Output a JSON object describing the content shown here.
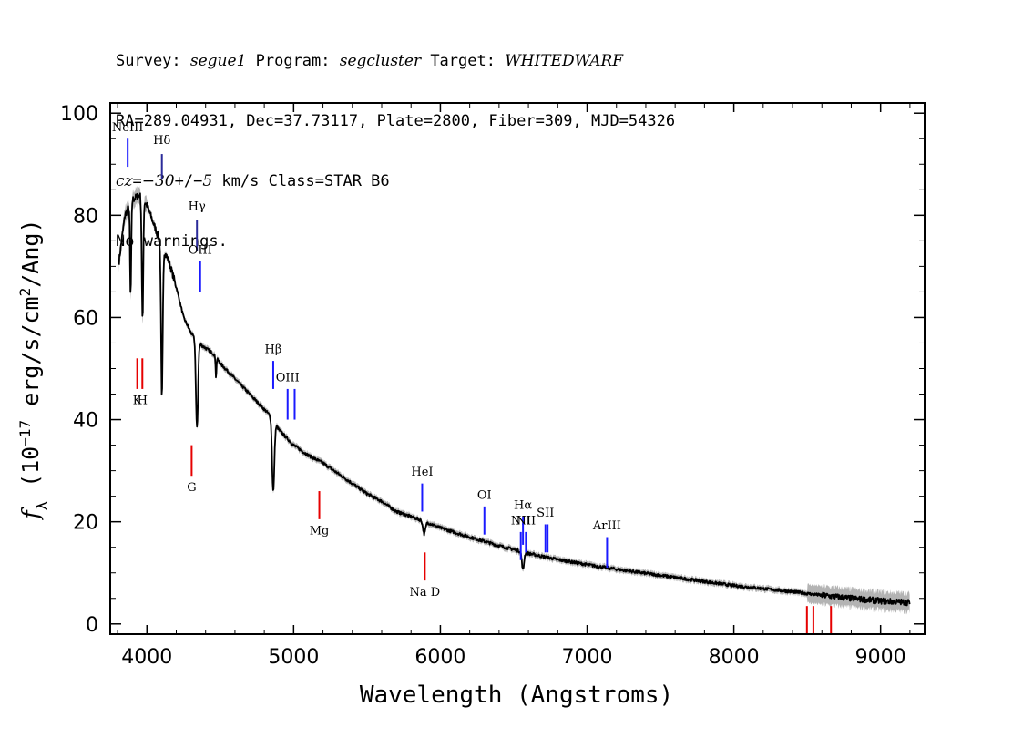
{
  "header": {
    "line1": {
      "survey_label": "Survey: ",
      "survey": "segue1",
      "program_label": " Program: ",
      "program": "segcluster",
      "target_label": " Target: ",
      "target": "WHITEDWARF"
    },
    "line2": "RA=289.04931, Dec=37.73117, Plate=2800, Fiber=309, MJD=54326",
    "line3": {
      "cz_label": "cz",
      "cz_eq": "=",
      "cz_value": "−30",
      "cz_pm": "+/−",
      "cz_err": "5",
      "rest": " km/s Class=STAR B6"
    },
    "line4": "No warnings."
  },
  "chart_data": {
    "type": "line",
    "xlabel": "Wavelength (Angstroms)",
    "ylabel_parts": {
      "f": "f",
      "sub": "λ",
      "open": " (10",
      "exp": "−17",
      "mid": " erg/s/cm",
      "exp2": "2",
      "close": "/Ang)"
    },
    "xlim": [
      3750,
      9300
    ],
    "ylim": [
      -2,
      102
    ],
    "x_ticks": [
      4000,
      5000,
      6000,
      7000,
      8000,
      9000
    ],
    "y_ticks": [
      0,
      20,
      40,
      60,
      80,
      100
    ],
    "x_tick_labels": [
      "4000",
      "5000",
      "6000",
      "7000",
      "8000",
      "9000"
    ],
    "y_tick_labels": [
      "0",
      "20",
      "40",
      "60",
      "80",
      "100"
    ],
    "spectrum": {
      "continuum": [
        [
          3810,
          71
        ],
        [
          3850,
          80
        ],
        [
          3900,
          83
        ],
        [
          3950,
          84
        ],
        [
          4000,
          82
        ],
        [
          4050,
          78
        ],
        [
          4100,
          74
        ],
        [
          4150,
          71
        ],
        [
          4200,
          66
        ],
        [
          4250,
          60
        ],
        [
          4300,
          57
        ],
        [
          4350,
          55
        ],
        [
          4400,
          54
        ],
        [
          4450,
          53
        ],
        [
          4500,
          51
        ],
        [
          4600,
          48
        ],
        [
          4700,
          45
        ],
        [
          4800,
          42
        ],
        [
          4850,
          40.5
        ],
        [
          4900,
          38
        ],
        [
          4950,
          36.5
        ],
        [
          5000,
          35
        ],
        [
          5100,
          33
        ],
        [
          5200,
          31.5
        ],
        [
          5300,
          29.5
        ],
        [
          5400,
          27.5
        ],
        [
          5500,
          25.5
        ],
        [
          5600,
          24
        ],
        [
          5700,
          22
        ],
        [
          5800,
          21
        ],
        [
          5900,
          20
        ],
        [
          6000,
          18.8
        ],
        [
          6200,
          17
        ],
        [
          6400,
          15.3
        ],
        [
          6600,
          13.8
        ],
        [
          6800,
          12.6
        ],
        [
          7000,
          11.6
        ],
        [
          7200,
          10.7
        ],
        [
          7400,
          9.9
        ],
        [
          7600,
          9.1
        ],
        [
          7800,
          8.3
        ],
        [
          8000,
          7.5
        ],
        [
          8200,
          6.9
        ],
        [
          8400,
          6.3
        ],
        [
          8600,
          5.6
        ],
        [
          8800,
          5.0
        ],
        [
          9000,
          4.5
        ],
        [
          9200,
          4.2
        ]
      ],
      "absorption": [
        {
          "center": 3889,
          "depth": 18,
          "width": 6
        },
        {
          "center": 3970,
          "depth": 24,
          "width": 7
        },
        {
          "center": 4102,
          "depth": 30,
          "width": 8
        },
        {
          "center": 4341,
          "depth": 17,
          "width": 10
        },
        {
          "center": 4471,
          "depth": 4,
          "width": 4
        },
        {
          "center": 4861,
          "depth": 14,
          "width": 11
        },
        {
          "center": 5890,
          "depth": 2.5,
          "width": 12
        },
        {
          "center": 6563,
          "depth": 3.5,
          "width": 10
        }
      ],
      "color": "#000000",
      "error_color": "#b3b3b3"
    },
    "line_markers": [
      {
        "label": "NeIII",
        "wavelength": 3869,
        "y_top": 95,
        "y_bottom": 89.5,
        "label_y": 96.5,
        "color": "#1a1aff"
      },
      {
        "label": "Hδ",
        "wavelength": 4102,
        "y_top": 92,
        "y_bottom": 87,
        "label_y": 94,
        "color": "#2b2b99"
      },
      {
        "label": "Hγ",
        "wavelength": 4341,
        "y_top": 79,
        "y_bottom": 73,
        "label_y": 81,
        "color": "#2b2b99"
      },
      {
        "label": "OIII",
        "wavelength": 4363,
        "y_top": 71,
        "y_bottom": 65,
        "label_y": 72.5,
        "color": "#1a1aff"
      },
      {
        "label": "Hβ",
        "wavelength": 4861,
        "y_top": 51.5,
        "y_bottom": 46,
        "label_y": 53,
        "color": "#1a1aff"
      },
      {
        "label": "OIII",
        "wavelength": 4959,
        "y_top": 46,
        "y_bottom": 40,
        "label_y": 47.5,
        "color": "#1a1aff"
      },
      {
        "label": "",
        "wavelength": 5007,
        "y_top": 46,
        "y_bottom": 40,
        "label_y": 47.5,
        "color": "#1a1aff"
      },
      {
        "label": "HeI",
        "wavelength": 5876,
        "y_top": 27.5,
        "y_bottom": 22,
        "label_y": 29,
        "color": "#1a1aff"
      },
      {
        "label": "OI",
        "wavelength": 6300,
        "y_top": 23,
        "y_bottom": 17.5,
        "label_y": 24.5,
        "color": "#1a1aff"
      },
      {
        "label": "NII",
        "wavelength": 6548,
        "y_top": 18,
        "y_bottom": 12.5,
        "label_y": 19.5,
        "color": "#1a1aff"
      },
      {
        "label": "Hα",
        "wavelength": 6563,
        "y_top": 21,
        "y_bottom": 15.5,
        "label_y": 22.5,
        "color": "#1a1aff"
      },
      {
        "label": "NII",
        "wavelength": 6583,
        "y_top": 18,
        "y_bottom": 14,
        "label_y": 19.5,
        "color": "#1a1aff"
      },
      {
        "label": "SII",
        "wavelength": 6716,
        "y_top": 19.5,
        "y_bottom": 14,
        "label_y": 21,
        "color": "#1a1aff"
      },
      {
        "label": "",
        "wavelength": 6731,
        "y_top": 19.5,
        "y_bottom": 14,
        "label_y": 21,
        "color": "#1a1aff"
      },
      {
        "label": "ArIII",
        "wavelength": 7136,
        "y_top": 17,
        "y_bottom": 11,
        "label_y": 18.5,
        "color": "#1a1aff"
      },
      {
        "label": "K",
        "wavelength": 3934,
        "y_top": 52,
        "y_bottom": 46,
        "label_y": 43,
        "color": "#e60000"
      },
      {
        "label": "H",
        "wavelength": 3969,
        "y_top": 52,
        "y_bottom": 46,
        "label_y": 43,
        "color": "#e60000"
      },
      {
        "label": "G",
        "wavelength": 4305,
        "y_top": 35,
        "y_bottom": 29,
        "label_y": 26,
        "color": "#e60000"
      },
      {
        "label": "Mg",
        "wavelength": 5175,
        "y_top": 26,
        "y_bottom": 20.5,
        "label_y": 17.5,
        "color": "#e60000"
      },
      {
        "label": "Na D",
        "wavelength": 5894,
        "y_top": 14,
        "y_bottom": 8.5,
        "label_y": 5.5,
        "color": "#e60000"
      },
      {
        "label": "",
        "wavelength": 8498,
        "y_top": 3.5,
        "y_bottom": -2,
        "label_y": -3,
        "color": "#e60000"
      },
      {
        "label": "",
        "wavelength": 8542,
        "y_top": 3.5,
        "y_bottom": -2,
        "label_y": -3,
        "color": "#e60000"
      },
      {
        "label": "",
        "wavelength": 8662,
        "y_top": 3.5,
        "y_bottom": -2,
        "label_y": -3,
        "color": "#e60000"
      }
    ]
  }
}
